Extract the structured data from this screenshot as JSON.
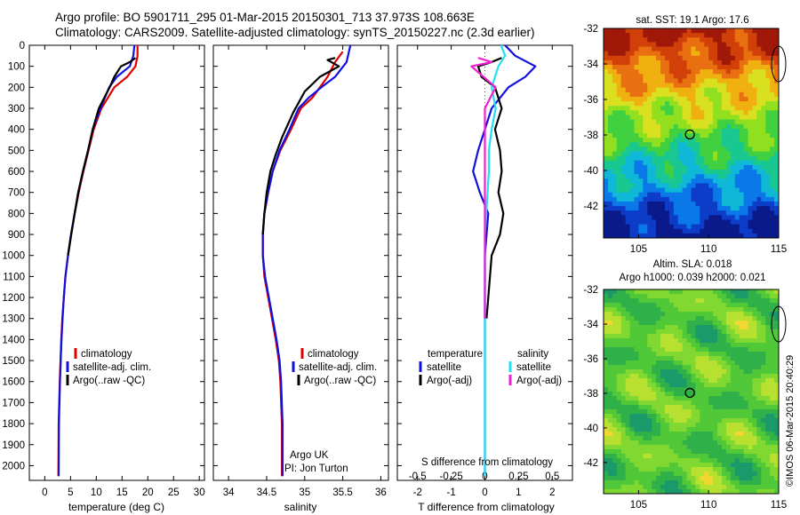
{
  "header": {
    "line1": "Argo profile: BO 5901711_295 01-Mar-2015 20150301_713 37.973S 108.663E",
    "line2": "Climatology: CARS2009. Satellite-adjusted climatology: synTS_20150227.nc (2.3d earlier)"
  },
  "colors": {
    "climatology": "#e00000",
    "satellite": "#1010e0",
    "argo": "#000000",
    "salinity_sat": "#20e0f0",
    "salinity_argo": "#f020d0"
  },
  "depth_axis": {
    "ticks": [
      "0",
      "100",
      "200",
      "300",
      "400",
      "500",
      "600",
      "700",
      "800",
      "900",
      "1000",
      "1100",
      "1200",
      "1300",
      "1400",
      "1500",
      "1600",
      "1700",
      "1800",
      "1900",
      "2000"
    ],
    "range": [
      0,
      2070
    ]
  },
  "temperature_panel": {
    "xlabel": "temperature (deg C)",
    "xticks": [
      "0",
      "5",
      "10",
      "15",
      "20",
      "25",
      "30"
    ],
    "legend": [
      "climatology",
      "satellite-adj. clim.",
      "Argo(..raw -QC)"
    ]
  },
  "salinity_panel": {
    "xlabel": "salinity",
    "xticks": [
      "34",
      "34.5",
      "35",
      "35.5",
      "36"
    ],
    "legend": [
      "climatology",
      "satellite-adj. clim.",
      "Argo(..raw -QC)"
    ],
    "note1": "Argo UK",
    "note2": "PI: Jon Turton"
  },
  "diff_panel": {
    "xlabel": "T difference from climatology",
    "top_label": "S difference from climatology",
    "xticks_t": [
      "-2",
      "-1",
      "0",
      "1",
      "2"
    ],
    "xticks_s": [
      "-0.5",
      "-0.25",
      "0",
      "0.25",
      "0.5"
    ],
    "legend_t_title": "temperature",
    "legend_t": [
      "satellite",
      "Argo(-adj)"
    ],
    "legend_s_title": "salinity",
    "legend_s": [
      "satellite",
      "Argo(-adj)"
    ]
  },
  "sst_map": {
    "title": "sat. SST: 19.1  Argo: 17.6",
    "yticks": [
      "-32",
      "-34",
      "-36",
      "-38",
      "-40",
      "-42"
    ],
    "xticks": [
      "105",
      "110",
      "115"
    ]
  },
  "sla_map": {
    "title1": "Altim. SLA: 0.018",
    "title2": "Argo h1000: 0.039 h2000: 0.021",
    "yticks": [
      "-32",
      "-34",
      "-36",
      "-38",
      "-40",
      "-42"
    ],
    "xticks": [
      "105",
      "110",
      "115"
    ]
  },
  "credit": "©IMOS 06-Mar-2015 20:40:29",
  "chart_data": [
    {
      "type": "line",
      "panel": "temperature",
      "xlabel": "temperature (deg C)",
      "ylabel": "",
      "xlim": [
        -3,
        31
      ],
      "ylim": [
        2070,
        0
      ],
      "series": [
        {
          "name": "climatology",
          "x": [
            18,
            18,
            17.6,
            16,
            13.5,
            11,
            9.5,
            8.5,
            7.5,
            6.6,
            5.8,
            5.1,
            4.5,
            4,
            3.7,
            3.4,
            3.2,
            3.05,
            2.9,
            2.8,
            2.7,
            2.65
          ],
          "y": [
            0,
            50,
            100,
            150,
            200,
            300,
            400,
            500,
            600,
            700,
            800,
            900,
            1000,
            1100,
            1200,
            1300,
            1400,
            1500,
            1600,
            1700,
            1800,
            2050
          ]
        },
        {
          "name": "satellite-adj. clim.",
          "x": [
            17.4,
            17.2,
            16.5,
            14,
            12.5,
            10.8,
            9.3,
            8.4,
            7.4,
            6.5,
            5.8,
            5.1,
            4.5,
            4,
            3.7,
            3.45,
            3.25,
            3.1,
            2.95,
            2.85,
            2.75,
            2.7
          ],
          "y": [
            0,
            50,
            100,
            150,
            200,
            300,
            400,
            500,
            600,
            700,
            800,
            900,
            1000,
            1100,
            1200,
            1300,
            1400,
            1500,
            1600,
            1700,
            1800,
            2050
          ]
        },
        {
          "name": "Argo(..raw -QC)",
          "x": [
            17.6,
            16.5,
            14.8,
            13.5,
            12.6,
            10.5,
            9.3,
            8.4,
            7.4,
            6.5,
            5.8,
            5.15,
            4.5
          ],
          "y": [
            60,
            80,
            100,
            150,
            200,
            300,
            400,
            500,
            600,
            700,
            800,
            900,
            1000
          ]
        }
      ]
    },
    {
      "type": "line",
      "panel": "salinity",
      "xlabel": "salinity",
      "ylabel": "",
      "xlim": [
        33.8,
        36.1
      ],
      "ylim": [
        2070,
        0
      ],
      "series": [
        {
          "name": "climatology",
          "x": [
            35.5,
            35.4,
            35.3,
            35.2,
            35.1,
            34.95,
            34.82,
            34.68,
            34.58,
            34.52,
            34.47,
            34.45,
            34.45,
            34.47,
            34.52,
            34.57,
            34.62,
            34.66,
            34.68,
            34.7,
            34.7
          ],
          "y": [
            30,
            80,
            150,
            200,
            250,
            300,
            400,
            500,
            600,
            700,
            800,
            900,
            1000,
            1100,
            1200,
            1300,
            1400,
            1500,
            1600,
            1800,
            2050
          ]
        },
        {
          "name": "satellite-adj. clim.",
          "x": [
            35.6,
            35.55,
            35.4,
            35.22,
            35.05,
            34.92,
            34.8,
            34.67,
            34.58,
            34.52,
            34.47,
            34.45,
            34.45,
            34.48,
            34.53,
            34.58,
            34.63,
            34.67,
            34.69,
            34.71,
            34.71
          ],
          "y": [
            0,
            80,
            150,
            200,
            250,
            300,
            400,
            500,
            600,
            700,
            800,
            900,
            1000,
            1100,
            1200,
            1300,
            1400,
            1500,
            1600,
            1800,
            2050
          ]
        },
        {
          "name": "Argo(..raw -QC)",
          "x": [
            35.4,
            35.3,
            35.45,
            35.2,
            35.0,
            34.85,
            34.7,
            34.62,
            34.55,
            34.5,
            34.47,
            34.45
          ],
          "y": [
            60,
            70,
            100,
            150,
            220,
            320,
            440,
            520,
            600,
            700,
            800,
            900
          ]
        }
      ]
    },
    {
      "type": "line",
      "panel": "difference",
      "xlabel": "T difference from climatology",
      "ylabel": "",
      "xlim": [
        -2.6,
        2.6
      ],
      "ylim": [
        2070,
        0
      ],
      "series": [
        {
          "name": "temperature satellite",
          "x": [
            0.6,
            0.9,
            1.5,
            1.2,
            0.7,
            0.2,
            0,
            -0.2,
            -0.35,
            -0.15,
            0.1,
            0.05,
            0,
            0,
            0,
            0,
            0,
            0,
            0,
            0,
            0
          ],
          "y": [
            0,
            50,
            100,
            150,
            200,
            300,
            400,
            500,
            600,
            700,
            800,
            900,
            1000,
            1100,
            1200,
            1300,
            1400,
            1500,
            1600,
            1800,
            2050
          ]
        },
        {
          "name": "temperature Argo(-adj)",
          "x": [
            0.5,
            0.2,
            -0.2,
            -0.1,
            0.3,
            0.5,
            0.3,
            0.45,
            0.5,
            0.4,
            0.55,
            0.45,
            0.2,
            0.15,
            0.1,
            0.05
          ],
          "y": [
            60,
            80,
            100,
            150,
            200,
            300,
            400,
            500,
            600,
            700,
            800,
            900,
            1000,
            1100,
            1200,
            1300
          ]
        }
      ]
    },
    {
      "type": "line",
      "panel": "difference",
      "xlabel": "S difference from climatology",
      "ylabel": "",
      "xlim": [
        -0.65,
        0.65
      ],
      "ylim": [
        2070,
        0
      ],
      "series": [
        {
          "name": "salinity satellite",
          "x": [
            0.12,
            0.15,
            0.1,
            0.05,
            0.08,
            0.05,
            0.03,
            0.03,
            0.02,
            0.01,
            0,
            0,
            0,
            0
          ],
          "y": [
            0,
            50,
            100,
            200,
            300,
            400,
            500,
            600,
            700,
            800,
            900,
            1000,
            1200,
            2050
          ]
        },
        {
          "name": "salinity Argo(-adj)",
          "x": [
            -0.05,
            0.05,
            -0.1,
            0.08,
            0,
            0,
            0,
            0,
            0,
            0,
            0
          ],
          "y": [
            60,
            80,
            100,
            200,
            300,
            500,
            700,
            900,
            1000,
            1200,
            1300
          ]
        }
      ]
    },
    {
      "type": "heatmap",
      "panel": "sst_map",
      "title": "sat. SST: 19.1  Argo: 17.6",
      "xlim": [
        102.5,
        115
      ],
      "ylim": [
        -43.8,
        -32
      ],
      "argo_position": [
        108.663,
        -37.973
      ]
    },
    {
      "type": "heatmap",
      "panel": "sla_map",
      "title": "Altim. SLA: 0.018",
      "xlim": [
        102.5,
        115
      ],
      "ylim": [
        -43.8,
        -32
      ],
      "argo_position": [
        108.663,
        -37.973
      ]
    }
  ]
}
